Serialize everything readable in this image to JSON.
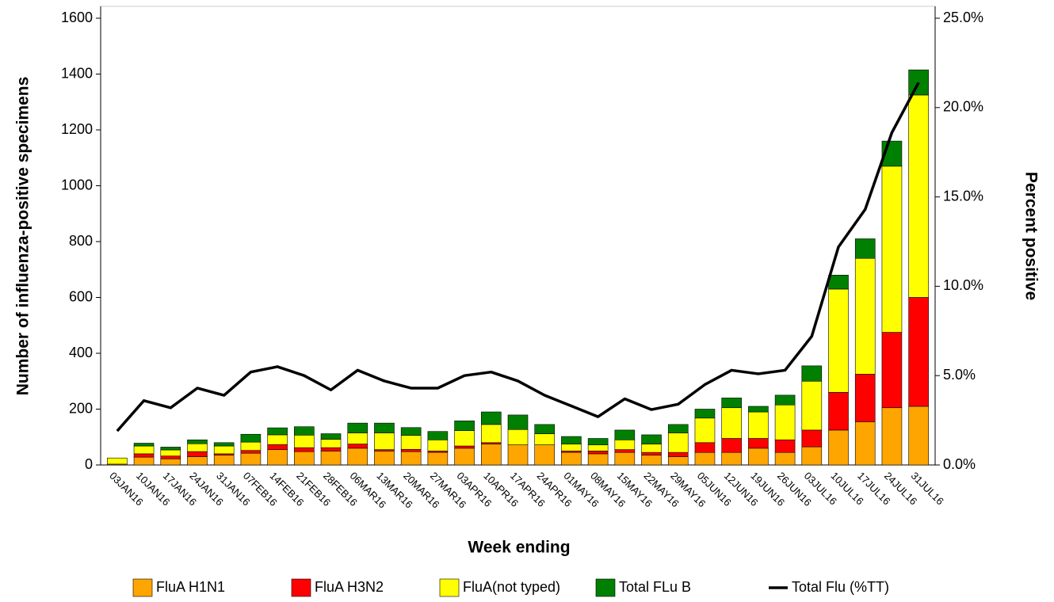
{
  "chart_data": {
    "type": "bar",
    "stacked": true,
    "x_label": "Week ending",
    "y_label": "Number of influenza-positive specimens",
    "y2_label": "Percent positive",
    "categories": [
      "03JAN16",
      "10JAN16",
      "17JAN16",
      "24JAN16",
      "31JAN16",
      "07FEB16",
      "14FEB16",
      "21FEB16",
      "28FEB16",
      "06MAR16",
      "13MAR16",
      "20MAR16",
      "27MAR16",
      "03APR16",
      "10APR16",
      "17APR16",
      "24APR16",
      "01MAY16",
      "08MAY16",
      "15MAY16",
      "22MAY16",
      "29MAY16",
      "05JUN16",
      "12JUN16",
      "19JUN16",
      "26JUN16",
      "03JUL16",
      "10JUL16",
      "17JUL16",
      "24JUL16",
      "31JUL16"
    ],
    "series": [
      {
        "name": "FluA H1N1",
        "color": "#ffa500",
        "values": [
          3,
          28,
          22,
          30,
          35,
          42,
          55,
          48,
          50,
          60,
          50,
          48,
          45,
          60,
          75,
          72,
          72,
          45,
          40,
          45,
          35,
          30,
          45,
          45,
          60,
          45,
          65,
          125,
          155,
          205,
          210
        ]
      },
      {
        "name": "FluA H3N2",
        "color": "#ff0000",
        "values": [
          0,
          12,
          10,
          18,
          5,
          10,
          18,
          14,
          12,
          15,
          5,
          8,
          5,
          8,
          5,
          0,
          0,
          5,
          10,
          10,
          10,
          15,
          35,
          50,
          35,
          45,
          60,
          135,
          170,
          270,
          390
        ]
      },
      {
        "name": "FluA(not typed)",
        "color": "#ffff00",
        "values": [
          22,
          28,
          22,
          28,
          28,
          30,
          35,
          45,
          30,
          40,
          60,
          50,
          40,
          55,
          65,
          55,
          40,
          25,
          22,
          35,
          30,
          70,
          88,
          110,
          95,
          125,
          175,
          370,
          415,
          595,
          725
        ]
      },
      {
        "name": "Total FLu B",
        "color": "#008000",
        "values": [
          0,
          10,
          10,
          14,
          12,
          28,
          25,
          30,
          20,
          35,
          35,
          28,
          30,
          35,
          45,
          52,
          33,
          27,
          23,
          35,
          33,
          30,
          32,
          35,
          20,
          35,
          55,
          50,
          70,
          90,
          90
        ]
      },
      {
        "name": "Total Flu (%TT)",
        "color": "#000000",
        "axis": "y2",
        "values": [
          1.9,
          3.6,
          3.2,
          4.3,
          3.9,
          5.2,
          5.5,
          5.0,
          4.2,
          5.3,
          4.7,
          4.3,
          4.3,
          5.0,
          5.2,
          4.7,
          3.9,
          3.3,
          2.7,
          3.7,
          3.1,
          3.4,
          4.5,
          5.3,
          5.1,
          5.3,
          7.2,
          12.2,
          14.3,
          18.6,
          21.4
        ]
      }
    ],
    "ylim": [
      0,
      1600
    ],
    "yticks": [
      0,
      200,
      400,
      600,
      800,
      1000,
      1200,
      1400,
      1600
    ],
    "y2lim": [
      0,
      25
    ],
    "y2ticks": [
      {
        "value": 0,
        "label": "0.0%"
      },
      {
        "value": 5,
        "label": "5.0%"
      },
      {
        "value": 10,
        "label": "10.0%"
      },
      {
        "value": 15,
        "label": "15.0%"
      },
      {
        "value": 20,
        "label": "20.0%"
      },
      {
        "value": 25,
        "label": "25.0%"
      }
    ],
    "grid": false
  }
}
